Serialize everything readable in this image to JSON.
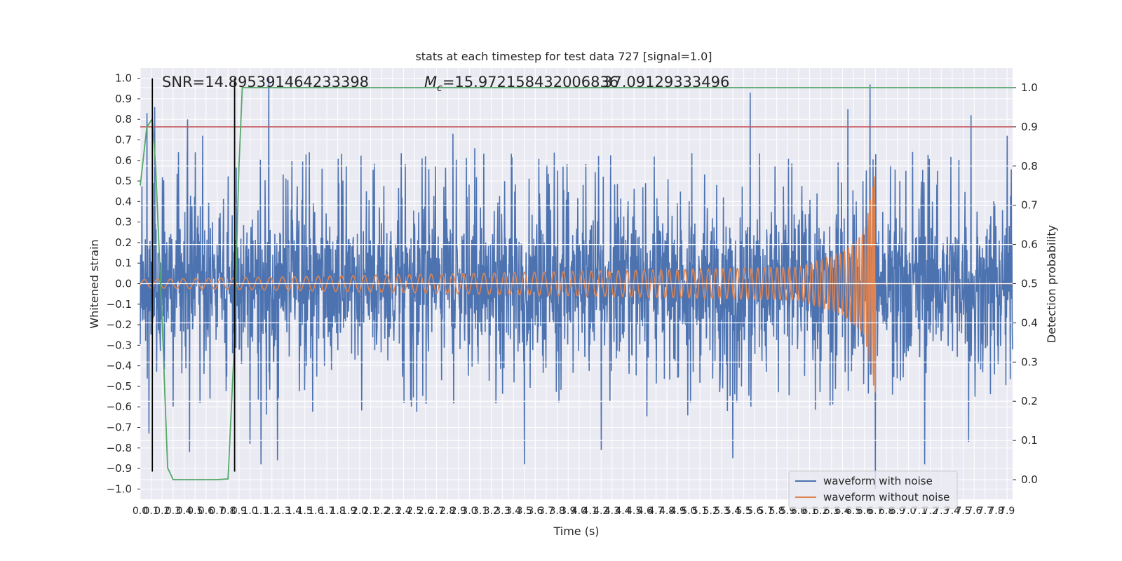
{
  "chart_data": {
    "type": "line",
    "title": "stats at each timestep for test data 727 [signal=1.0]",
    "xlabel": "Time (s)",
    "ylabel_left": "Whitened strain",
    "ylabel_right": "Detection probability",
    "xlim": [
      0.0,
      7.95
    ],
    "ylim_left": [
      -1.05,
      1.05
    ],
    "ylim_right": [
      -0.05,
      1.05
    ],
    "x_ticks": [
      "0.0",
      "0.1",
      "0.2",
      "0.3",
      "0.4",
      "0.5",
      "0.6",
      "0.7",
      "0.8",
      "0.9",
      "1.0",
      "1.1",
      "1.2",
      "1.3",
      "1.4",
      "1.5",
      "1.6",
      "1.7",
      "1.8",
      "1.9",
      "2.0",
      "2.1",
      "2.2",
      "2.3",
      "2.4",
      "2.5",
      "2.6",
      "2.7",
      "2.8",
      "2.9",
      "3.0",
      "3.1",
      "3.2",
      "3.3",
      "3.4",
      "3.5",
      "3.6",
      "3.7",
      "3.8",
      "3.9",
      "4.0",
      "4.1",
      "4.2",
      "4.3",
      "4.4",
      "4.5",
      "4.6",
      "4.7",
      "4.8",
      "4.9",
      "5.0",
      "5.1",
      "5.2",
      "5.3",
      "5.4",
      "5.5",
      "5.6",
      "5.7",
      "5.8",
      "5.9",
      "6.0",
      "6.1",
      "6.2",
      "6.3",
      "6.4",
      "6.5",
      "6.6",
      "6.7",
      "6.8",
      "6.9",
      "7.0",
      "7.1",
      "7.2",
      "7.3",
      "7.4",
      "7.5",
      "7.6",
      "7.7",
      "7.8",
      "7.9"
    ],
    "y_ticks_left": [
      "−1.0",
      "−0.9",
      "−0.8",
      "−0.7",
      "−0.6",
      "−0.5",
      "−0.4",
      "−0.3",
      "−0.2",
      "−0.1",
      "0.0",
      "0.1",
      "0.2",
      "0.3",
      "0.4",
      "0.5",
      "0.6",
      "0.7",
      "0.8",
      "0.9",
      "1.0"
    ],
    "y_ticks_right": [
      "0.0",
      "0.1",
      "0.2",
      "0.3",
      "0.4",
      "0.5",
      "0.6",
      "0.7",
      "0.8",
      "0.9",
      "1.0"
    ],
    "annotations": {
      "snr": "SNR=14.895391464233398",
      "mc": "=15.972158432006836",
      "mc_label": "M",
      "mc_sub": "c",
      "overlap": "37.09129333496"
    },
    "threshold_line": {
      "axis": "right",
      "y": 0.9,
      "color": "#c44e52"
    },
    "vertical_markers": [
      0.11,
      0.86
    ],
    "series": [
      {
        "name": "waveform with noise",
        "color": "#4c72b0",
        "axis": "left",
        "noise_envelope": 0.25,
        "peaks_upper": [
          [
            0.06,
            0.83
          ],
          [
            0.13,
            0.86
          ],
          [
            0.43,
            0.8
          ],
          [
            0.57,
            0.72
          ],
          [
            1.17,
            1.0
          ],
          [
            2.85,
            0.73
          ],
          [
            3.05,
            0.66
          ],
          [
            4.2,
            0.75
          ],
          [
            5.56,
            0.93
          ],
          [
            6.45,
            0.85
          ],
          [
            6.65,
            0.97
          ],
          [
            7.57,
            0.82
          ],
          [
            7.9,
            0.72
          ]
        ],
        "peaks_lower": [
          [
            0.08,
            -0.73
          ],
          [
            0.45,
            -0.82
          ],
          [
            1.0,
            -0.78
          ],
          [
            1.1,
            -0.88
          ],
          [
            1.25,
            -0.86
          ],
          [
            3.5,
            -0.88
          ],
          [
            4.2,
            -0.81
          ],
          [
            5.4,
            -0.85
          ],
          [
            6.7,
            -1.0
          ],
          [
            7.15,
            -0.88
          ],
          [
            7.55,
            -0.77
          ]
        ]
      },
      {
        "name": "waveform without noise",
        "color": "#dd8452",
        "axis": "left",
        "merger_time": 6.7,
        "peak_amplitude": 0.55,
        "x": [
          0.0,
          6.0,
          6.4,
          6.6,
          6.7,
          6.75,
          7.95
        ],
        "envelope": [
          0.02,
          0.08,
          0.15,
          0.25,
          0.55,
          0.0,
          0.0
        ]
      },
      {
        "name": "detection probability",
        "color": "#55a868",
        "axis": "right",
        "x": [
          0.0,
          0.06,
          0.11,
          0.14,
          0.2,
          0.25,
          0.3,
          0.4,
          0.55,
          0.7,
          0.8,
          0.85,
          0.9,
          0.93,
          1.0,
          7.95
        ],
        "values": [
          0.75,
          0.9,
          0.92,
          0.8,
          0.4,
          0.03,
          0.0,
          0.0,
          0.0,
          0.0,
          0.002,
          0.3,
          0.8,
          1.0,
          1.0,
          1.0
        ]
      }
    ],
    "legend": {
      "position": "lower-right",
      "entries": [
        {
          "label": "waveform with noise",
          "color": "#4c72b0"
        },
        {
          "label": "waveform without noise",
          "color": "#dd8452"
        }
      ]
    },
    "grid": true
  }
}
